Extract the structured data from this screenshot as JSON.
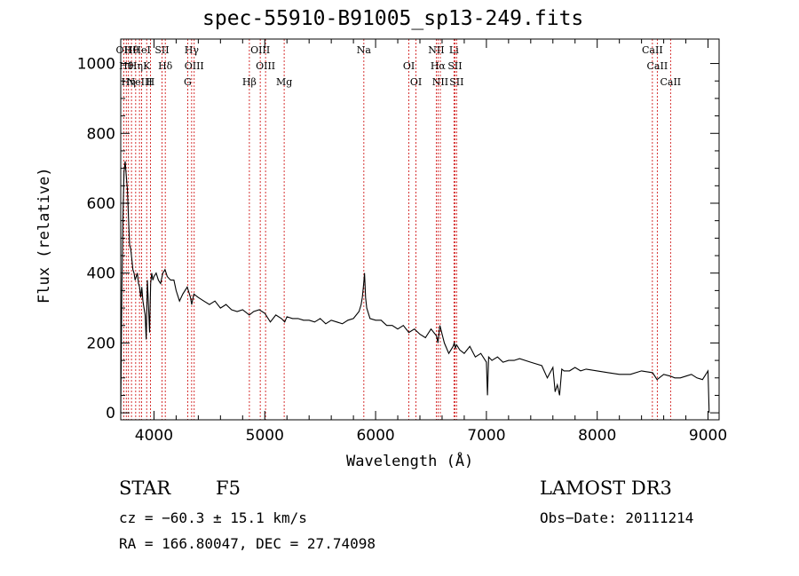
{
  "chart_data": {
    "type": "line",
    "title": "spec-55910-B91005_sp13-249.fits",
    "xlabel": "Wavelength (Å)",
    "ylabel": "Flux (relative)",
    "xlim": [
      3700,
      9100
    ],
    "ylim": [
      -20,
      1070
    ],
    "xticks": [
      4000,
      5000,
      6000,
      7000,
      8000,
      9000
    ],
    "yticks": [
      0,
      200,
      400,
      600,
      800,
      1000
    ],
    "grid": false,
    "series": [
      {
        "name": "flux",
        "x": [
          3700,
          3710,
          3720,
          3730,
          3740,
          3750,
          3760,
          3770,
          3780,
          3790,
          3800,
          3810,
          3820,
          3830,
          3840,
          3850,
          3860,
          3870,
          3880,
          3890,
          3900,
          3910,
          3920,
          3930,
          3940,
          3950,
          3960,
          3970,
          3980,
          3990,
          4000,
          4020,
          4040,
          4060,
          4080,
          4100,
          4120,
          4150,
          4180,
          4200,
          4230,
          4260,
          4300,
          4330,
          4340,
          4360,
          4400,
          4450,
          4500,
          4550,
          4600,
          4650,
          4700,
          4750,
          4800,
          4860,
          4900,
          4950,
          5000,
          5050,
          5100,
          5150,
          5180,
          5200,
          5250,
          5300,
          5350,
          5400,
          5450,
          5500,
          5550,
          5600,
          5650,
          5700,
          5750,
          5800,
          5850,
          5870,
          5880,
          5890,
          5895,
          5900,
          5910,
          5920,
          5950,
          6000,
          6050,
          6100,
          6150,
          6200,
          6250,
          6300,
          6350,
          6400,
          6450,
          6500,
          6550,
          6563,
          6580,
          6620,
          6660,
          6700,
          6710,
          6720,
          6730,
          6760,
          6800,
          6850,
          6900,
          6950,
          7000,
          7010,
          7020,
          7050,
          7100,
          7150,
          7200,
          7250,
          7300,
          7400,
          7500,
          7550,
          7600,
          7620,
          7640,
          7660,
          7680,
          7700,
          7750,
          7800,
          7850,
          7900,
          8000,
          8100,
          8200,
          8300,
          8400,
          8500,
          8540,
          8600,
          8660,
          8700,
          8750,
          8800,
          8850,
          8900,
          8950,
          9000,
          9010
        ],
        "values": [
          0,
          340,
          560,
          690,
          720,
          680,
          640,
          560,
          480,
          470,
          440,
          410,
          400,
          380,
          390,
          400,
          370,
          360,
          330,
          360,
          320,
          300,
          280,
          210,
          380,
          310,
          230,
          370,
          400,
          380,
          390,
          400,
          380,
          370,
          400,
          410,
          390,
          380,
          380,
          350,
          320,
          340,
          360,
          330,
          310,
          340,
          330,
          320,
          310,
          320,
          300,
          310,
          295,
          290,
          295,
          280,
          290,
          295,
          285,
          260,
          280,
          270,
          260,
          275,
          270,
          270,
          265,
          265,
          260,
          270,
          255,
          265,
          260,
          255,
          265,
          270,
          290,
          310,
          330,
          360,
          380,
          400,
          330,
          300,
          270,
          265,
          265,
          250,
          250,
          240,
          250,
          230,
          240,
          225,
          215,
          240,
          220,
          200,
          250,
          200,
          170,
          190,
          200,
          185,
          195,
          180,
          170,
          190,
          160,
          170,
          145,
          50,
          160,
          150,
          160,
          145,
          150,
          150,
          155,
          145,
          135,
          100,
          130,
          60,
          80,
          50,
          125,
          120,
          120,
          130,
          120,
          125,
          120,
          115,
          110,
          110,
          120,
          115,
          95,
          110,
          105,
          100,
          100,
          105,
          110,
          100,
          95,
          120,
          0
        ]
      }
    ],
    "line_labels": [
      {
        "wavelength": 3727,
        "label": "OII"
      },
      {
        "wavelength": 3750,
        "label": "Hθ"
      },
      {
        "wavelength": 3770,
        "label": "Hη"
      },
      {
        "wavelength": 3797,
        "label": "Hθ"
      },
      {
        "wavelength": 3835,
        "label": "Hη"
      },
      {
        "wavelength": 3869,
        "label": "NeIII"
      },
      {
        "wavelength": 3889,
        "label": "HeI"
      },
      {
        "wavelength": 3934,
        "label": "K"
      },
      {
        "wavelength": 3968,
        "label": "H"
      },
      {
        "wavelength": 4072,
        "label": "SII"
      },
      {
        "wavelength": 4102,
        "label": "Hδ"
      },
      {
        "wavelength": 4304,
        "label": "G"
      },
      {
        "wavelength": 4340,
        "label": "Hγ"
      },
      {
        "wavelength": 4363,
        "label": "OIII"
      },
      {
        "wavelength": 4861,
        "label": "Hβ"
      },
      {
        "wavelength": 4959,
        "label": "OIII"
      },
      {
        "wavelength": 5007,
        "label": "OIII"
      },
      {
        "wavelength": 5175,
        "label": "Mg"
      },
      {
        "wavelength": 5894,
        "label": "Na"
      },
      {
        "wavelength": 6300,
        "label": "OI"
      },
      {
        "wavelength": 6364,
        "label": "OI"
      },
      {
        "wavelength": 6548,
        "label": "NII"
      },
      {
        "wavelength": 6563,
        "label": "Hα"
      },
      {
        "wavelength": 6584,
        "label": "NII"
      },
      {
        "wavelength": 6707,
        "label": "Li"
      },
      {
        "wavelength": 6716,
        "label": "SII"
      },
      {
        "wavelength": 6731,
        "label": "SII"
      },
      {
        "wavelength": 8498,
        "label": "CaII"
      },
      {
        "wavelength": 8542,
        "label": "CaII"
      },
      {
        "wavelength": 8662,
        "label": "CaII"
      }
    ]
  },
  "info": {
    "object_class": "STAR",
    "subclass": "F5",
    "survey": "LAMOST DR3",
    "cz": "cz = −60.3 ± 15.1 km/s",
    "obs_date": "Obs−Date: 20111214",
    "coords": "RA = 166.80047, DEC =  27.74098"
  },
  "colors": {
    "line_marker": "#cc0000",
    "spectrum": "#000000",
    "axes": "#000000"
  }
}
